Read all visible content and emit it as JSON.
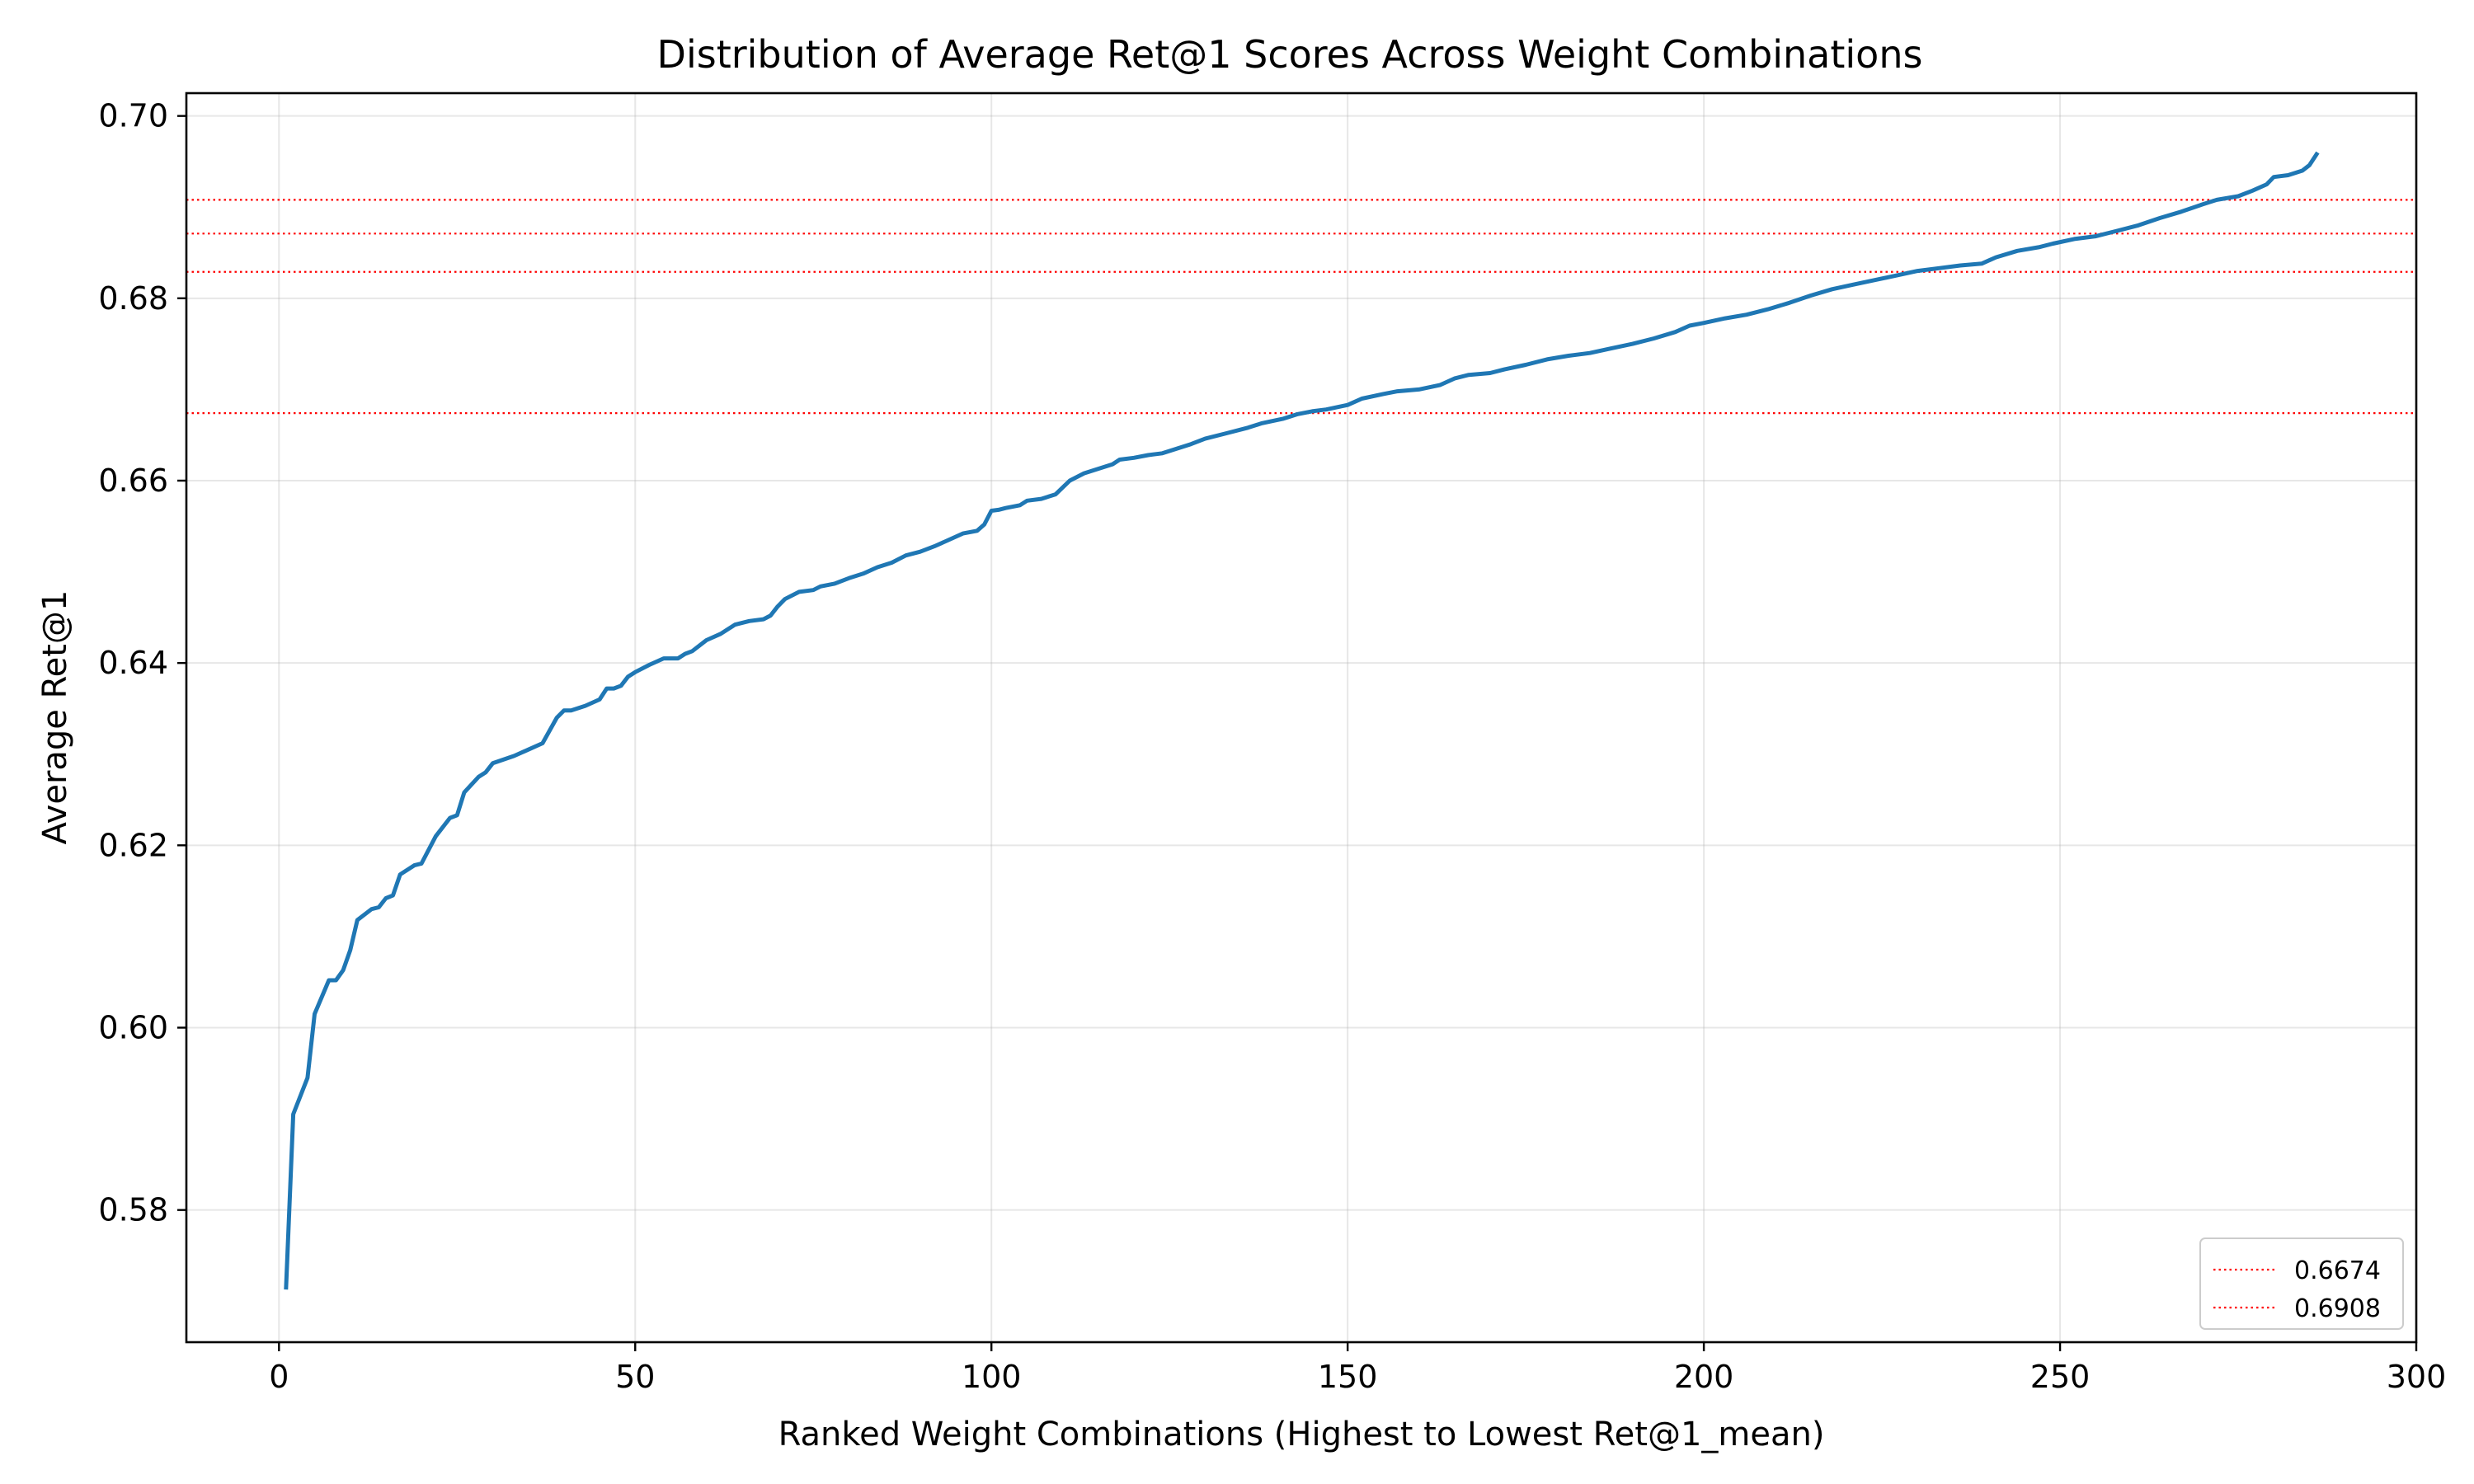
{
  "chart_data": {
    "type": "line",
    "title": "Distribution of Average Ret@1 Scores Across Weight Combinations",
    "xlabel": "Ranked Weight Combinations (Highest to Lowest Ret@1_mean)",
    "ylabel": "Average Ret@1",
    "xlim": [
      -13,
      300
    ],
    "ylim": [
      0.5655,
      0.7025
    ],
    "x_ticks": [
      0,
      50,
      100,
      150,
      200,
      250,
      300
    ],
    "x_tick_labels": [
      "0",
      "50",
      "100",
      "150",
      "200",
      "250",
      "300"
    ],
    "y_ticks": [
      0.58,
      0.6,
      0.62,
      0.64,
      0.66,
      0.68,
      0.7
    ],
    "y_tick_labels": [
      "0.58",
      "0.60",
      "0.62",
      "0.64",
      "0.66",
      "0.68",
      "0.70"
    ],
    "grid": true,
    "series_color": "#1f77b4",
    "series": [
      {
        "points": [
          [
            1,
            0.5715
          ],
          [
            2,
            0.5905
          ],
          [
            4,
            0.5945
          ],
          [
            5,
            0.6015
          ],
          [
            7,
            0.6052
          ],
          [
            8,
            0.6052
          ],
          [
            9,
            0.6063
          ],
          [
            10,
            0.6085
          ],
          [
            11,
            0.6118
          ],
          [
            13,
            0.613
          ],
          [
            14,
            0.6132
          ],
          [
            15,
            0.6142
          ],
          [
            16,
            0.6145
          ],
          [
            17,
            0.6168
          ],
          [
            19,
            0.6178
          ],
          [
            20,
            0.618
          ],
          [
            22,
            0.621
          ],
          [
            24,
            0.623
          ],
          [
            25,
            0.6233
          ],
          [
            26,
            0.6258
          ],
          [
            28,
            0.6275
          ],
          [
            29,
            0.628
          ],
          [
            30,
            0.629
          ],
          [
            33,
            0.6298
          ],
          [
            35,
            0.6305
          ],
          [
            37,
            0.6312
          ],
          [
            39,
            0.634
          ],
          [
            40,
            0.6348
          ],
          [
            41,
            0.6348
          ],
          [
            43,
            0.6353
          ],
          [
            45,
            0.636
          ],
          [
            46,
            0.6372
          ],
          [
            47,
            0.6372
          ],
          [
            48,
            0.6375
          ],
          [
            49,
            0.6385
          ],
          [
            50,
            0.639
          ],
          [
            52,
            0.6398
          ],
          [
            54,
            0.6405
          ],
          [
            56,
            0.6405
          ],
          [
            57,
            0.641
          ],
          [
            58,
            0.6413
          ],
          [
            60,
            0.6425
          ],
          [
            62,
            0.6432
          ],
          [
            64,
            0.6442
          ],
          [
            66,
            0.6446
          ],
          [
            68,
            0.6448
          ],
          [
            69,
            0.6452
          ],
          [
            70,
            0.6462
          ],
          [
            71,
            0.647
          ],
          [
            73,
            0.6478
          ],
          [
            75,
            0.648
          ],
          [
            76,
            0.6484
          ],
          [
            78,
            0.6487
          ],
          [
            80,
            0.6493
          ],
          [
            82,
            0.6498
          ],
          [
            84,
            0.6505
          ],
          [
            86,
            0.651
          ],
          [
            88,
            0.6518
          ],
          [
            90,
            0.6522
          ],
          [
            92,
            0.6528
          ],
          [
            94,
            0.6535
          ],
          [
            96,
            0.6542
          ],
          [
            98,
            0.6545
          ],
          [
            99,
            0.6552
          ],
          [
            100,
            0.6567
          ],
          [
            101,
            0.6568
          ],
          [
            102,
            0.657
          ],
          [
            104,
            0.6573
          ],
          [
            105,
            0.6578
          ],
          [
            107,
            0.658
          ],
          [
            109,
            0.6585
          ],
          [
            111,
            0.66
          ],
          [
            113,
            0.6608
          ],
          [
            115,
            0.6613
          ],
          [
            117,
            0.6618
          ],
          [
            118,
            0.6623
          ],
          [
            120,
            0.6625
          ],
          [
            122,
            0.6628
          ],
          [
            124,
            0.663
          ],
          [
            126,
            0.6635
          ],
          [
            128,
            0.664
          ],
          [
            130,
            0.6646
          ],
          [
            133,
            0.6652
          ],
          [
            136,
            0.6658
          ],
          [
            138,
            0.6663
          ],
          [
            141,
            0.6668
          ],
          [
            143,
            0.6673
          ],
          [
            145,
            0.6676
          ],
          [
            147,
            0.6678
          ],
          [
            150,
            0.6683
          ],
          [
            152,
            0.669
          ],
          [
            155,
            0.6695
          ],
          [
            157,
            0.6698
          ],
          [
            160,
            0.67
          ],
          [
            163,
            0.6705
          ],
          [
            165,
            0.6712
          ],
          [
            167,
            0.6716
          ],
          [
            170,
            0.6718
          ],
          [
            172,
            0.6722
          ],
          [
            175,
            0.6727
          ],
          [
            178,
            0.6733
          ],
          [
            181,
            0.6737
          ],
          [
            184,
            0.674
          ],
          [
            187,
            0.6745
          ],
          [
            190,
            0.675
          ],
          [
            193,
            0.6756
          ],
          [
            196,
            0.6763
          ],
          [
            198,
            0.677
          ],
          [
            200,
            0.6773
          ],
          [
            203,
            0.6778
          ],
          [
            206,
            0.6782
          ],
          [
            209,
            0.6788
          ],
          [
            212,
            0.6795
          ],
          [
            215,
            0.6803
          ],
          [
            218,
            0.681
          ],
          [
            221,
            0.6815
          ],
          [
            224,
            0.682
          ],
          [
            227,
            0.6825
          ],
          [
            230,
            0.683
          ],
          [
            233,
            0.6833
          ],
          [
            236,
            0.6836
          ],
          [
            239,
            0.6838
          ],
          [
            241,
            0.6845
          ],
          [
            244,
            0.6852
          ],
          [
            247,
            0.6856
          ],
          [
            249,
            0.686
          ],
          [
            252,
            0.6865
          ],
          [
            255,
            0.6868
          ],
          [
            258,
            0.6874
          ],
          [
            261,
            0.688
          ],
          [
            264,
            0.6888
          ],
          [
            267,
            0.6895
          ],
          [
            270,
            0.6903
          ],
          [
            272,
            0.6908
          ],
          [
            275,
            0.6912
          ],
          [
            277,
            0.6918
          ],
          [
            279,
            0.6925
          ],
          [
            280,
            0.6933
          ],
          [
            282,
            0.6935
          ],
          [
            284,
            0.694
          ],
          [
            285,
            0.6946
          ],
          [
            286,
            0.6958
          ]
        ]
      }
    ],
    "reference_lines": [
      {
        "y": 0.6674,
        "color": "#ff0000",
        "style": "dotted"
      },
      {
        "y": 0.6829,
        "color": "#ff0000",
        "style": "dotted"
      },
      {
        "y": 0.6871,
        "color": "#ff0000",
        "style": "dotted"
      },
      {
        "y": 0.6908,
        "color": "#ff0000",
        "style": "dotted"
      }
    ],
    "legend": {
      "position": "bottom-right",
      "entries": [
        {
          "label": "0.6674",
          "color": "#ff0000",
          "style": "dotted"
        },
        {
          "label": "0.6908",
          "color": "#ff0000",
          "style": "dotted"
        }
      ]
    }
  }
}
